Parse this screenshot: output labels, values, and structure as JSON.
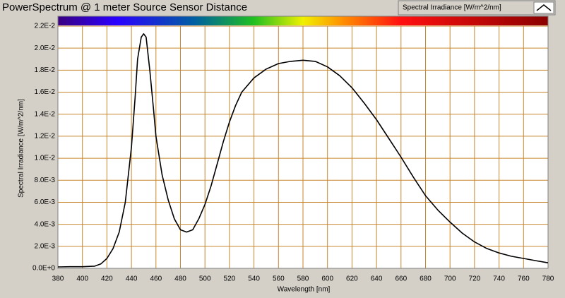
{
  "chart_data": {
    "type": "line",
    "title": "PowerSpectrum @ 1 meter Source Sensor Distance",
    "x_label": "Wavelength [nm]",
    "y_label": "Spectral Irradiance [W/m^2/nm]",
    "x": [
      380,
      390,
      400,
      410,
      415,
      420,
      425,
      430,
      435,
      440,
      443,
      445,
      448,
      450,
      452,
      455,
      458,
      460,
      465,
      470,
      475,
      480,
      485,
      490,
      495,
      500,
      505,
      510,
      515,
      520,
      525,
      530,
      540,
      550,
      560,
      570,
      580,
      590,
      600,
      610,
      620,
      630,
      640,
      650,
      660,
      670,
      680,
      690,
      700,
      710,
      720,
      730,
      740,
      750,
      760,
      770,
      780
    ],
    "series": [
      {
        "name": "Spectral Irradiance [W/m^2/nm]",
        "color": "#000000",
        "values": [
          0.00013,
          0.00015,
          0.00015,
          0.0002,
          0.0004,
          0.0009,
          0.0018,
          0.0033,
          0.006,
          0.011,
          0.0155,
          0.019,
          0.021,
          0.0213,
          0.021,
          0.018,
          0.0145,
          0.012,
          0.0085,
          0.0062,
          0.0045,
          0.0035,
          0.0033,
          0.0035,
          0.0045,
          0.0058,
          0.0075,
          0.0095,
          0.0115,
          0.0133,
          0.0148,
          0.016,
          0.0173,
          0.0181,
          0.0186,
          0.0188,
          0.0189,
          0.0188,
          0.0183,
          0.0175,
          0.0164,
          0.015,
          0.0135,
          0.0118,
          0.0101,
          0.0083,
          0.0066,
          0.0053,
          0.0042,
          0.0032,
          0.0024,
          0.0018,
          0.0014,
          0.0011,
          0.0009,
          0.0007,
          0.0005
        ]
      }
    ],
    "xlim": [
      380,
      780
    ],
    "xticks": [
      380,
      400,
      420,
      440,
      460,
      480,
      500,
      520,
      540,
      560,
      580,
      600,
      620,
      640,
      660,
      680,
      700,
      720,
      740,
      760,
      780
    ],
    "ylim": [
      0,
      0.022
    ],
    "yticks": [
      {
        "value": 0,
        "label": "0.0E+0"
      },
      {
        "value": 0.002,
        "label": "2.0E-3"
      },
      {
        "value": 0.004,
        "label": "4.0E-3"
      },
      {
        "value": 0.006,
        "label": "6.0E-3"
      },
      {
        "value": 0.008,
        "label": "8.0E-3"
      },
      {
        "value": 0.01,
        "label": "1.0E-2"
      },
      {
        "value": 0.012,
        "label": "1.2E-2"
      },
      {
        "value": 0.014,
        "label": "1.4E-2"
      },
      {
        "value": 0.016,
        "label": "1.6E-2"
      },
      {
        "value": 0.018,
        "label": "1.8E-2"
      },
      {
        "value": 0.02,
        "label": "2.0E-2"
      },
      {
        "value": 0.022,
        "label": "2.2E-2"
      }
    ],
    "grid": true
  }
}
